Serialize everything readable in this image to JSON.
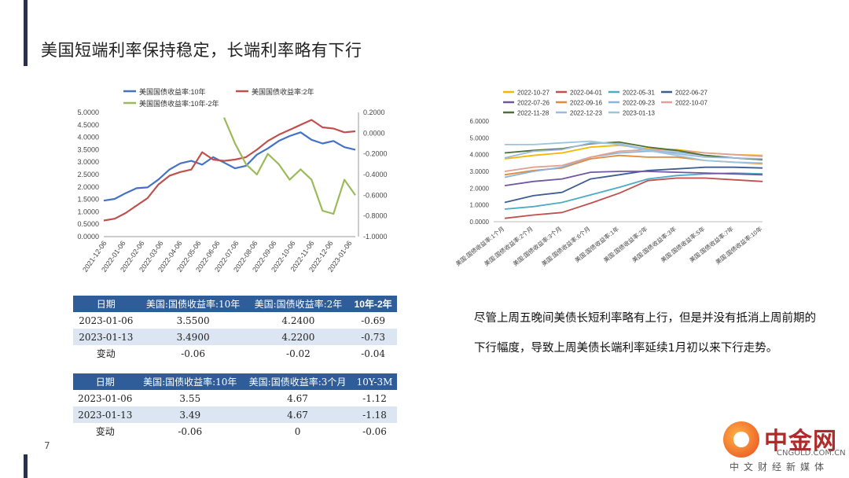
{
  "title": "美国短端利率保持稳定，长端利率略有下行",
  "page_number": "7",
  "chart_data": [
    {
      "type": "line",
      "legend": [
        "美国国债收益率:10年",
        "美国国债收益率:2年",
        "美国国债收益率:10年-2年"
      ],
      "colors": [
        "#4472c4",
        "#c0504d",
        "#9bbb59"
      ],
      "y_left_ticks": [
        "5.0000",
        "4.5000",
        "4.0000",
        "3.5000",
        "3.0000",
        "2.5000",
        "2.0000",
        "1.5000",
        "1.0000",
        "0.5000",
        "0.0000"
      ],
      "y_right_ticks": [
        "0.2000",
        "0.0000",
        "-0.2000",
        "-0.4000",
        "-0.6000",
        "-0.8000",
        "-1.0000"
      ],
      "x_ticks": [
        "2021-12-06",
        "2022-01-06",
        "2022-02-06",
        "2022-03-06",
        "2022-04-06",
        "2022-05-06",
        "2022-06-06",
        "2022-07-06",
        "2022-08-06",
        "2022-09-06",
        "2022-10-06",
        "2022-11-06",
        "2022-12-06",
        "2023-01-06"
      ],
      "ylim_left": [
        0,
        5
      ],
      "ylim_right": [
        -1,
        0.2
      ],
      "series": [
        {
          "name": "美国国债收益率:10年",
          "axis": "left",
          "values": [
            1.45,
            1.52,
            1.75,
            1.95,
            1.98,
            2.3,
            2.7,
            2.95,
            3.05,
            2.9,
            3.2,
            2.98,
            2.75,
            2.85,
            3.3,
            3.55,
            3.85,
            4.05,
            4.2,
            3.9,
            3.75,
            3.85,
            3.6,
            3.5
          ]
        },
        {
          "name": "美国国债收益率:2年",
          "axis": "left",
          "values": [
            0.65,
            0.72,
            0.95,
            1.25,
            1.55,
            2.1,
            2.45,
            2.6,
            2.7,
            3.4,
            3.1,
            3.05,
            3.1,
            3.2,
            3.5,
            3.85,
            4.1,
            4.3,
            4.5,
            4.7,
            4.4,
            4.35,
            4.2,
            4.24
          ]
        },
        {
          "name": "美国国债收益率:10年-2年",
          "axis": "right",
          "start_index": 11,
          "values": [
            0.15,
            -0.1,
            -0.3,
            -0.4,
            -0.2,
            -0.3,
            -0.45,
            -0.35,
            -0.45,
            -0.75,
            -0.78,
            -0.45,
            -0.6
          ]
        }
      ]
    },
    {
      "type": "line",
      "legend": [
        "2022-10-27",
        "2022-04-01",
        "2022-05-31",
        "2022-06-27",
        "2022-07-26",
        "2022-09-16",
        "2022-09-23",
        "2022-10-07",
        "2022-11-28",
        "2022-12-23",
        "2023-01-13"
      ],
      "colors": [
        "#f5b800",
        "#c0504d",
        "#4bacc6",
        "#3c5e94",
        "#7057a1",
        "#e28a3a",
        "#8ab4d9",
        "#e0a096",
        "#4e7032",
        "#9fb8e0",
        "#9ac6dd"
      ],
      "y_ticks": [
        "6.0000",
        "5.0000",
        "4.0000",
        "3.0000",
        "2.0000",
        "1.0000",
        "0.0000"
      ],
      "ylim": [
        0,
        6
      ],
      "categories": [
        "美国:国债收益率:1个月",
        "美国:国债收益率:2个月",
        "美国:国债收益率:3个月",
        "美国:国债收益率:6个月",
        "美国:国债收益率:1年",
        "美国:国债收益率:2年",
        "美国:国债收益率:3年",
        "美国:国债收益率:5年",
        "美国:国债收益率:7年",
        "美国:国债收益率:10年"
      ],
      "series": [
        {
          "name": "2022-10-27",
          "values": [
            3.75,
            3.95,
            4.1,
            4.45,
            4.55,
            4.35,
            4.3,
            4.1,
            4.0,
            3.95
          ]
        },
        {
          "name": "2022-04-01",
          "values": [
            0.2,
            0.4,
            0.55,
            1.1,
            1.7,
            2.45,
            2.6,
            2.6,
            2.5,
            2.4
          ]
        },
        {
          "name": "2022-05-31",
          "values": [
            0.75,
            0.9,
            1.15,
            1.6,
            2.05,
            2.55,
            2.75,
            2.85,
            2.9,
            2.85
          ]
        },
        {
          "name": "2022-06-27",
          "values": [
            1.15,
            1.55,
            1.75,
            2.55,
            2.8,
            3.05,
            3.15,
            3.25,
            3.25,
            3.2
          ]
        },
        {
          "name": "2022-07-26",
          "values": [
            2.15,
            2.4,
            2.55,
            2.95,
            3.0,
            3.0,
            2.95,
            2.9,
            2.85,
            2.8
          ]
        },
        {
          "name": "2022-09-16",
          "values": [
            2.8,
            3.05,
            3.2,
            3.75,
            3.95,
            3.85,
            3.85,
            3.65,
            3.55,
            3.45
          ]
        },
        {
          "name": "2022-09-23",
          "values": [
            2.65,
            3.0,
            3.25,
            3.85,
            4.1,
            4.2,
            4.15,
            3.95,
            3.8,
            3.7
          ]
        },
        {
          "name": "2022-10-07",
          "values": [
            3.0,
            3.25,
            3.35,
            3.85,
            4.2,
            4.3,
            4.25,
            4.1,
            4.0,
            3.9
          ]
        },
        {
          "name": "2022-11-28",
          "values": [
            4.1,
            4.25,
            4.35,
            4.65,
            4.75,
            4.45,
            4.25,
            3.95,
            3.8,
            3.7
          ]
        },
        {
          "name": "2022-12-23",
          "values": [
            3.8,
            4.2,
            4.3,
            4.7,
            4.65,
            4.3,
            4.05,
            3.85,
            3.8,
            3.75
          ]
        },
        {
          "name": "2023-01-13",
          "values": [
            4.6,
            4.6,
            4.7,
            4.8,
            4.6,
            4.25,
            3.95,
            3.65,
            3.55,
            3.5
          ]
        }
      ]
    }
  ],
  "table1": {
    "headers": [
      "日期",
      "美国:国债收益率:10年",
      "美国:国债收益率:2年",
      "10年-2年"
    ],
    "rows": [
      [
        "2023-01-06",
        "3.5500",
        "4.2400",
        "-0.69"
      ],
      [
        "2023-01-13",
        "3.4900",
        "4.2200",
        "-0.73"
      ],
      [
        "变动",
        "-0.06",
        "-0.02",
        "-0.04"
      ]
    ]
  },
  "table2": {
    "headers": [
      "日期",
      "美国:国债收益率:10年",
      "美国:国债收益率:3个月",
      "10Y-3M"
    ],
    "rows": [
      [
        "2023-01-06",
        "3.55",
        "4.67",
        "-1.12"
      ],
      [
        "2023-01-13",
        "3.49",
        "4.67",
        "-1.18"
      ],
      [
        "变动",
        "-0.06",
        "0",
        "-0.06"
      ]
    ]
  },
  "commentary": "尽管上周五晚间美债长短利率略有上行，但是并没有抵消上周前期的下行幅度，导致上周美债长端利率延续1月初以来下行走势。",
  "logo": {
    "name": "中金网",
    "domain": "CNGOLD.COM.CN",
    "slogan": "中文财经新媒体"
  }
}
